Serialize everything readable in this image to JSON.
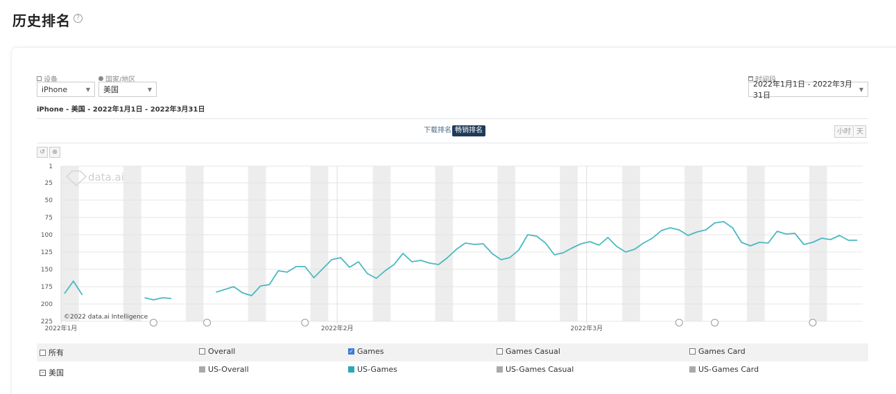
{
  "header": {
    "title": "历史排名",
    "help_icon": "question-circle-icon"
  },
  "filters": {
    "device": {
      "label": "设备",
      "value": "iPhone",
      "icon": "device-icon"
    },
    "country": {
      "label": "国家/地区",
      "value": "美国",
      "icon": "globe-icon"
    },
    "date_range": {
      "label": "时间段",
      "value": "2022年1月1日 - 2022年3月31日",
      "icon": "calendar-icon"
    }
  },
  "subtitle": "iPhone - 美国 - 2022年1月1日 - 2022年3月31日",
  "rank_type_tabs": [
    {
      "label": "下载排名",
      "active": false
    },
    {
      "label": "畅销排名",
      "active": true
    }
  ],
  "granularity": [
    {
      "label": "小时",
      "active": false
    },
    {
      "label": "天",
      "active": false
    }
  ],
  "chart_tools": [
    "reset-zoom-icon",
    "zoom-icon"
  ],
  "watermark": {
    "text": "data.ai",
    "copyright": "©2022 data.ai Intelligence"
  },
  "colors": {
    "series": "#4ab8c1",
    "weekend_band": "#ededed",
    "active_tab": "#1f3a5a",
    "checkbox": "#3a7bd5",
    "inactive_swatch": "#a9a9a9"
  },
  "chart_data": {
    "type": "line",
    "y_axis": {
      "reversed": true,
      "min": 1,
      "max": 225,
      "ticks": [
        1,
        25,
        50,
        75,
        100,
        125,
        150,
        175,
        200,
        225
      ]
    },
    "x_axis": {
      "start": "2022-01-01",
      "end": "2022-03-31",
      "labels": [
        {
          "date": "2022-01-01",
          "text": "2022年1月"
        },
        {
          "date": "2022-02-01",
          "text": "2022年2月"
        },
        {
          "date": "2022-03-01",
          "text": "2022年3月"
        }
      ]
    },
    "weekend_bands": true,
    "annotation_markers": [
      "2022-01-11",
      "2022-01-17",
      "2022-01-28",
      "2022-03-11",
      "2022-03-15",
      "2022-03-26"
    ],
    "series": [
      {
        "name": "US-Games",
        "color": "#4ab8c1",
        "points": [
          {
            "date": "2022-01-01",
            "rank": 185
          },
          {
            "date": "2022-01-02",
            "rank": 167
          },
          {
            "date": "2022-01-03",
            "rank": 187
          },
          {
            "date": "2022-01-10",
            "rank": 191
          },
          {
            "date": "2022-01-11",
            "rank": 194
          },
          {
            "date": "2022-01-12",
            "rank": 191
          },
          {
            "date": "2022-01-13",
            "rank": 192
          },
          {
            "date": "2022-01-18",
            "rank": 183
          },
          {
            "date": "2022-01-19",
            "rank": 179
          },
          {
            "date": "2022-01-20",
            "rank": 175
          },
          {
            "date": "2022-01-21",
            "rank": 184
          },
          {
            "date": "2022-01-22",
            "rank": 188
          },
          {
            "date": "2022-01-23",
            "rank": 174
          },
          {
            "date": "2022-01-24",
            "rank": 172
          },
          {
            "date": "2022-01-25",
            "rank": 152
          },
          {
            "date": "2022-01-26",
            "rank": 154
          },
          {
            "date": "2022-01-27",
            "rank": 146
          },
          {
            "date": "2022-01-28",
            "rank": 146
          },
          {
            "date": "2022-01-29",
            "rank": 162
          },
          {
            "date": "2022-01-30",
            "rank": 149
          },
          {
            "date": "2022-01-31",
            "rank": 136
          },
          {
            "date": "2022-02-01",
            "rank": 133
          },
          {
            "date": "2022-02-02",
            "rank": 147
          },
          {
            "date": "2022-02-03",
            "rank": 139
          },
          {
            "date": "2022-02-04",
            "rank": 156
          },
          {
            "date": "2022-02-05",
            "rank": 163
          },
          {
            "date": "2022-02-06",
            "rank": 152
          },
          {
            "date": "2022-02-07",
            "rank": 143
          },
          {
            "date": "2022-02-08",
            "rank": 127
          },
          {
            "date": "2022-02-09",
            "rank": 139
          },
          {
            "date": "2022-02-10",
            "rank": 137
          },
          {
            "date": "2022-02-11",
            "rank": 141
          },
          {
            "date": "2022-02-12",
            "rank": 143
          },
          {
            "date": "2022-02-13",
            "rank": 133
          },
          {
            "date": "2022-02-14",
            "rank": 121
          },
          {
            "date": "2022-02-15",
            "rank": 112
          },
          {
            "date": "2022-02-16",
            "rank": 114
          },
          {
            "date": "2022-02-17",
            "rank": 113
          },
          {
            "date": "2022-02-18",
            "rank": 127
          },
          {
            "date": "2022-02-19",
            "rank": 136
          },
          {
            "date": "2022-02-20",
            "rank": 133
          },
          {
            "date": "2022-02-21",
            "rank": 122
          },
          {
            "date": "2022-02-22",
            "rank": 100
          },
          {
            "date": "2022-02-23",
            "rank": 102
          },
          {
            "date": "2022-02-24",
            "rank": 112
          },
          {
            "date": "2022-02-25",
            "rank": 129
          },
          {
            "date": "2022-02-26",
            "rank": 126
          },
          {
            "date": "2022-02-27",
            "rank": 119
          },
          {
            "date": "2022-02-28",
            "rank": 113
          },
          {
            "date": "2022-03-01",
            "rank": 110
          },
          {
            "date": "2022-03-02",
            "rank": 115
          },
          {
            "date": "2022-03-03",
            "rank": 104
          },
          {
            "date": "2022-03-04",
            "rank": 117
          },
          {
            "date": "2022-03-05",
            "rank": 125
          },
          {
            "date": "2022-03-06",
            "rank": 121
          },
          {
            "date": "2022-03-07",
            "rank": 112
          },
          {
            "date": "2022-03-08",
            "rank": 105
          },
          {
            "date": "2022-03-09",
            "rank": 94
          },
          {
            "date": "2022-03-10",
            "rank": 90
          },
          {
            "date": "2022-03-11",
            "rank": 93
          },
          {
            "date": "2022-03-12",
            "rank": 101
          },
          {
            "date": "2022-03-13",
            "rank": 96
          },
          {
            "date": "2022-03-14",
            "rank": 93
          },
          {
            "date": "2022-03-15",
            "rank": 83
          },
          {
            "date": "2022-03-16",
            "rank": 81
          },
          {
            "date": "2022-03-17",
            "rank": 90
          },
          {
            "date": "2022-03-18",
            "rank": 111
          },
          {
            "date": "2022-03-19",
            "rank": 116
          },
          {
            "date": "2022-03-20",
            "rank": 111
          },
          {
            "date": "2022-03-21",
            "rank": 112
          },
          {
            "date": "2022-03-22",
            "rank": 95
          },
          {
            "date": "2022-03-23",
            "rank": 99
          },
          {
            "date": "2022-03-24",
            "rank": 98
          },
          {
            "date": "2022-03-25",
            "rank": 114
          },
          {
            "date": "2022-03-26",
            "rank": 111
          },
          {
            "date": "2022-03-27",
            "rank": 105
          },
          {
            "date": "2022-03-28",
            "rank": 107
          },
          {
            "date": "2022-03-29",
            "rank": 101
          },
          {
            "date": "2022-03-30",
            "rank": 108
          },
          {
            "date": "2022-03-31",
            "rank": 108
          }
        ]
      }
    ]
  },
  "legend": {
    "categories": [
      {
        "label": "所有",
        "checked": false
      },
      {
        "label": "Overall",
        "checked": false
      },
      {
        "label": "Games",
        "checked": true
      },
      {
        "label": "Games Casual",
        "checked": false
      },
      {
        "label": "Games Card",
        "checked": false
      }
    ],
    "country_row": {
      "label": "美国",
      "items": [
        {
          "label": "US-Overall",
          "color": "#a9a9a9"
        },
        {
          "label": "US-Games",
          "color": "#2ba8b5"
        },
        {
          "label": "US-Games Casual",
          "color": "#a9a9a9"
        },
        {
          "label": "US-Games Card",
          "color": "#a9a9a9"
        }
      ]
    }
  }
}
